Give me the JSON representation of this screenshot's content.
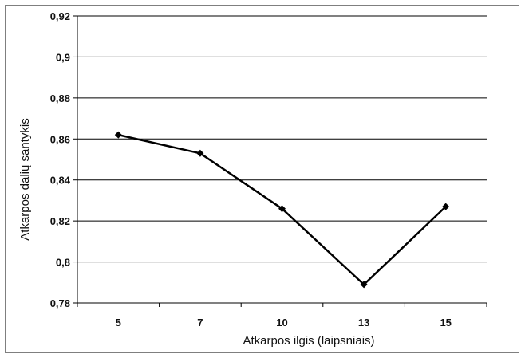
{
  "chart_data": {
    "type": "line",
    "title": "",
    "xlabel": "Atkarpos ilgis (laipsniais)",
    "ylabel": "Atkarpos dalių santykis",
    "categories": [
      "5",
      "7",
      "10",
      "13",
      "15"
    ],
    "series": [
      {
        "values": [
          0.862,
          0.853,
          0.826,
          0.789,
          0.827
        ]
      }
    ],
    "ylim": [
      0.78,
      0.92
    ],
    "yticks": [
      0.78,
      0.8,
      0.82,
      0.84,
      0.86,
      0.88,
      0.9,
      0.92
    ],
    "ytick_labels": [
      "0,78",
      "0,8",
      "0,82",
      "0,84",
      "0,86",
      "0,88",
      "0,9",
      "0,92"
    ],
    "grid": "horizontal",
    "legend": "none",
    "colors": {
      "line": "#000000",
      "grid": "#000000"
    },
    "marker": "diamond"
  }
}
